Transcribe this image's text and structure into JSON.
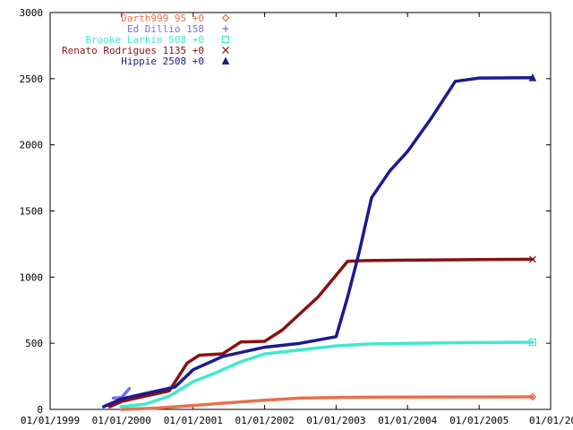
{
  "chart_data": {
    "type": "line",
    "title": "",
    "xlabel": "",
    "ylabel": "",
    "ylim": [
      0,
      3000
    ],
    "xlim": [
      "1999-01-01",
      "2006-01-01"
    ],
    "grid": false,
    "legend_position": "top-right",
    "y_ticks": [
      "0",
      "500",
      "1000",
      "1500",
      "2000",
      "2500",
      "3000"
    ],
    "x_ticks": [
      "01/01/1999",
      "01/01/2000",
      "01/01/2001",
      "01/01/2002",
      "01/01/2003",
      "01/01/2004",
      "01/01/2005",
      "01/01/20"
    ],
    "x_tick_dates": [
      "1999-01-01",
      "2000-01-01",
      "2001-01-01",
      "2002-01-01",
      "2003-01-01",
      "2004-01-01",
      "2005-01-01",
      "2006-01-01"
    ],
    "series": [
      {
        "name": "Darth999 95 +0",
        "color": "#e8704a",
        "marker": "diamond",
        "x": [
          "2000-01-01",
          "2000-07-01",
          "2001-01-01",
          "2001-07-01",
          "2002-01-01",
          "2002-07-01",
          "2003-01-01",
          "2003-07-01",
          "2004-01-01",
          "2005-01-01",
          "2005-10-01"
        ],
        "y": [
          0,
          10,
          30,
          50,
          70,
          85,
          90,
          92,
          93,
          94,
          95
        ]
      },
      {
        "name": "Ed Dillio 158",
        "color": "#7a6ee8",
        "marker": "plus",
        "x": [
          "1999-11-20",
          "2000-01-01",
          "2000-02-10"
        ],
        "y": [
          85,
          90,
          158
        ]
      },
      {
        "name": "Brooke Larkin 508 +0",
        "color": "#40e8d0",
        "marker": "square",
        "x": [
          "2000-01-01",
          "2000-05-01",
          "2000-09-01",
          "2001-01-01",
          "2001-05-01",
          "2001-09-01",
          "2002-01-01",
          "2002-07-01",
          "2003-01-01",
          "2003-07-01",
          "2004-01-01",
          "2005-01-01",
          "2005-10-01"
        ],
        "y": [
          20,
          40,
          100,
          210,
          280,
          360,
          420,
          450,
          480,
          495,
          500,
          505,
          508
        ]
      },
      {
        "name": "Renato Rodrigues 1135 +0",
        "color": "#8b1010",
        "marker": "cross",
        "x": [
          "1999-11-01",
          "2000-01-01",
          "2000-05-01",
          "2000-09-01",
          "2000-12-01",
          "2001-02-01",
          "2001-06-01",
          "2001-09-01",
          "2002-01-01",
          "2002-04-01",
          "2002-10-01",
          "2003-03-01",
          "2003-06-01",
          "2004-01-01",
          "2005-01-01",
          "2005-10-01"
        ],
        "y": [
          20,
          60,
          100,
          140,
          350,
          410,
          420,
          510,
          515,
          600,
          850,
          1120,
          1125,
          1128,
          1132,
          1135
        ]
      },
      {
        "name": "Hippie 2508 +0",
        "color": "#1a1a90",
        "marker": "triangle",
        "x": [
          "1999-10-01",
          "2000-01-01",
          "2000-06-01",
          "2000-10-01",
          "2001-01-01",
          "2001-06-01",
          "2002-01-01",
          "2002-07-01",
          "2003-01-01",
          "2003-03-01",
          "2003-05-01",
          "2003-07-01",
          "2003-10-01",
          "2004-01-01",
          "2004-05-01",
          "2004-09-01",
          "2005-01-01",
          "2005-10-01"
        ],
        "y": [
          20,
          80,
          130,
          170,
          300,
          400,
          470,
          500,
          550,
          850,
          1200,
          1600,
          1800,
          1950,
          2200,
          2480,
          2505,
          2508
        ]
      }
    ]
  }
}
